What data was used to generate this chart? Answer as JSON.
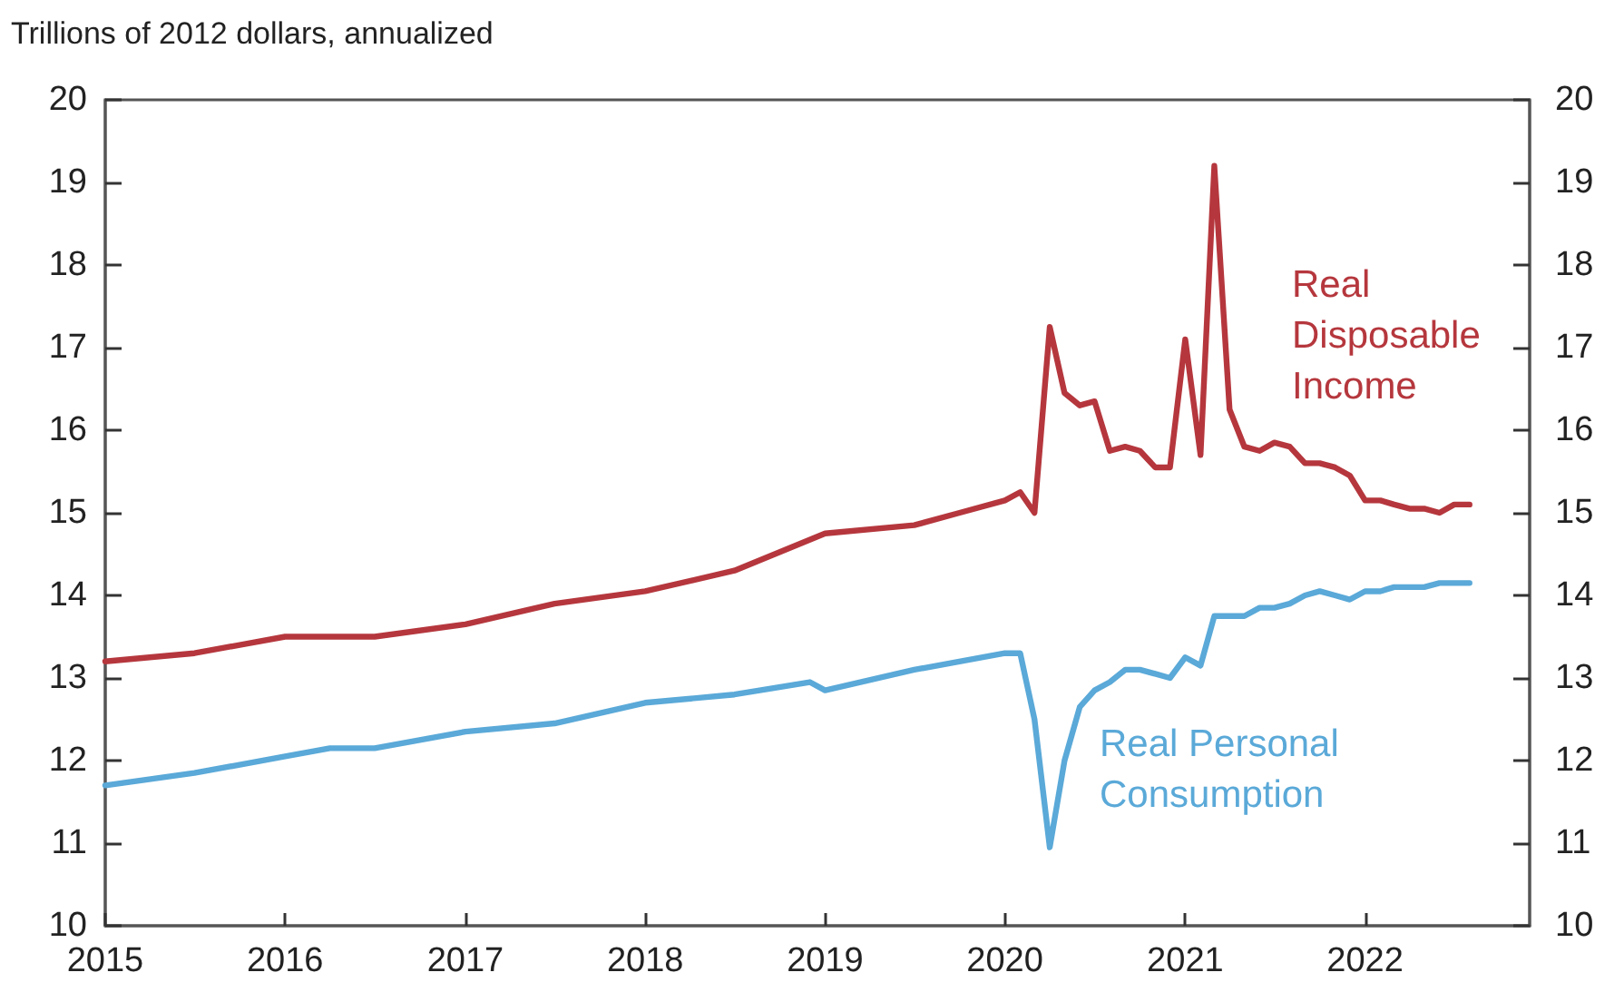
{
  "chart_data": {
    "type": "line",
    "ylabel": "Trillions of 2012 dollars, annualized",
    "xlim": [
      "2015-01",
      "2022-12"
    ],
    "xticks": [
      {
        "value": "2015",
        "label": "2015"
      },
      {
        "value": "2016",
        "label": "2016"
      },
      {
        "value": "2017",
        "label": "2017"
      },
      {
        "value": "2018",
        "label": "2018"
      },
      {
        "value": "2019",
        "label": "2019"
      },
      {
        "value": "2020",
        "label": "2020"
      },
      {
        "value": "2021",
        "label": "2021"
      },
      {
        "value": "2022",
        "label": "2022"
      }
    ],
    "ylim": [
      10,
      20
    ],
    "yticks": [
      10,
      11,
      12,
      13,
      14,
      15,
      16,
      17,
      18,
      19,
      20
    ],
    "y2lim": [
      10,
      20
    ],
    "y2ticks": [
      10,
      11,
      12,
      13,
      14,
      15,
      16,
      17,
      18,
      19,
      20
    ],
    "grid": false,
    "legend": false,
    "marker": "none",
    "line_style": "solid",
    "series": [
      {
        "name": "Real Disposable Income",
        "color": "#b5373d",
        "x": [
          "2015-01",
          "2015-04",
          "2015-07",
          "2015-10",
          "2016-01",
          "2016-07",
          "2017-01",
          "2017-07",
          "2018-01",
          "2018-07",
          "2019-01",
          "2019-07",
          "2019-10",
          "2020-01",
          "2020-02",
          "2020-03",
          "2020-04",
          "2020-05",
          "2020-06",
          "2020-07",
          "2020-08",
          "2020-09",
          "2020-10",
          "2020-11",
          "2020-12",
          "2021-01",
          "2021-02",
          "2021-03",
          "2021-04",
          "2021-05",
          "2021-06",
          "2021-07",
          "2021-08",
          "2021-09",
          "2021-10",
          "2021-11",
          "2021-12",
          "2022-01",
          "2022-02",
          "2022-03",
          "2022-04",
          "2022-05",
          "2022-06",
          "2022-07",
          "2022-08"
        ],
        "values": [
          13.2,
          13.25,
          13.3,
          13.4,
          13.5,
          13.5,
          13.65,
          13.9,
          14.05,
          14.3,
          14.75,
          14.85,
          15.0,
          15.15,
          15.25,
          15.0,
          17.25,
          16.45,
          16.3,
          16.35,
          15.75,
          15.8,
          15.75,
          15.55,
          15.55,
          17.1,
          15.7,
          19.2,
          16.25,
          15.8,
          15.75,
          15.85,
          15.8,
          15.6,
          15.6,
          15.55,
          15.45,
          15.15,
          15.15,
          15.1,
          15.05,
          15.05,
          15.0,
          15.1,
          15.1
        ]
      },
      {
        "name": "Real Personal Consumption",
        "color": "#5aa9d8",
        "x": [
          "2015-01",
          "2015-07",
          "2016-01",
          "2016-04",
          "2016-07",
          "2017-01",
          "2017-07",
          "2018-01",
          "2018-07",
          "2018-12",
          "2019-01",
          "2019-07",
          "2020-01",
          "2020-02",
          "2020-03",
          "2020-04",
          "2020-05",
          "2020-06",
          "2020-07",
          "2020-08",
          "2020-09",
          "2020-10",
          "2020-11",
          "2020-12",
          "2021-01",
          "2021-02",
          "2021-03",
          "2021-04",
          "2021-05",
          "2021-06",
          "2021-07",
          "2021-08",
          "2021-09",
          "2021-10",
          "2021-11",
          "2021-12",
          "2022-01",
          "2022-02",
          "2022-03",
          "2022-04",
          "2022-05",
          "2022-06",
          "2022-07",
          "2022-08"
        ],
        "values": [
          11.7,
          11.85,
          12.05,
          12.15,
          12.15,
          12.35,
          12.45,
          12.7,
          12.8,
          12.95,
          12.85,
          13.1,
          13.3,
          13.3,
          12.5,
          10.95,
          12.0,
          12.65,
          12.85,
          12.95,
          13.1,
          13.1,
          13.05,
          13.0,
          13.25,
          13.15,
          13.75,
          13.75,
          13.75,
          13.85,
          13.85,
          13.9,
          14.0,
          14.05,
          14.0,
          13.95,
          14.05,
          14.05,
          14.1,
          14.1,
          14.1,
          14.15,
          14.15,
          14.15
        ]
      }
    ]
  }
}
